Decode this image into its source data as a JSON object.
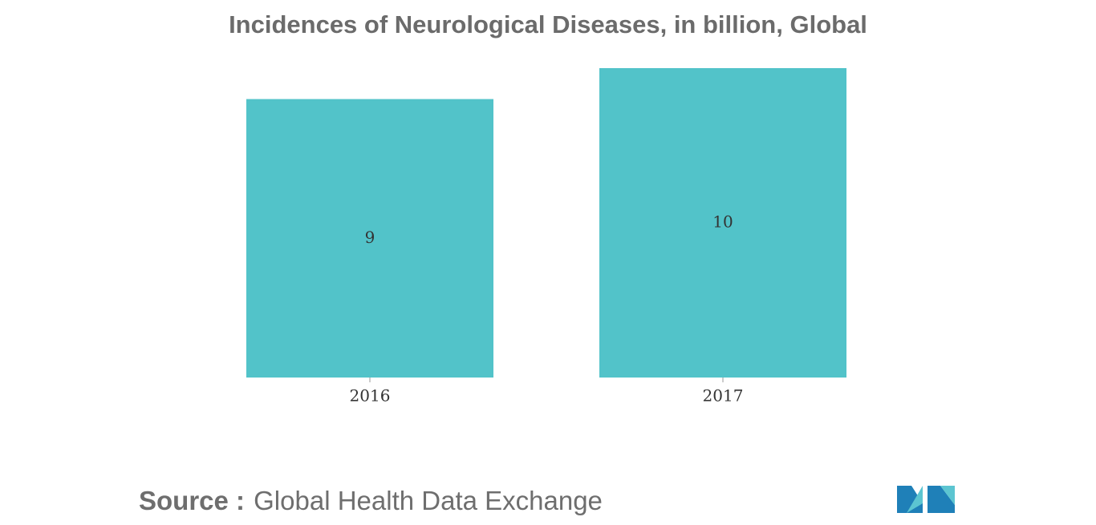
{
  "chart_data": {
    "type": "bar",
    "title": "Incidences of Neurological Diseases, in billion, Global",
    "categories": [
      "2016",
      "2017"
    ],
    "values": [
      9,
      10
    ],
    "color": "#52c3c9",
    "source_label": "Source :",
    "source": "Global Health Data Exchange"
  }
}
